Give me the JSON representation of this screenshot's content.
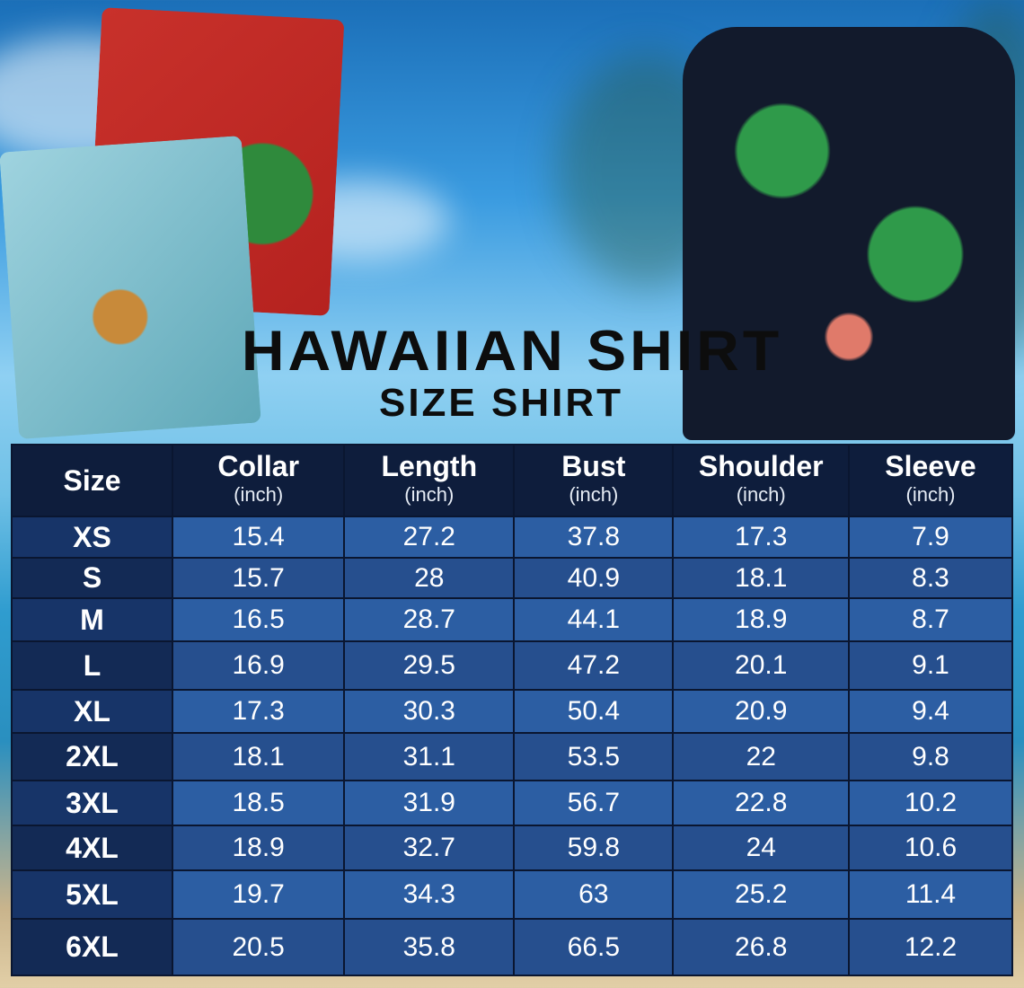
{
  "title": "HAWAIIAN SHIRT",
  "subtitle": "SIZE SHIRT",
  "colors": {
    "header_bg": "#0e1d3c",
    "cell_bg": "#2c5ea3",
    "size_col_bg": "#173468",
    "title": "#0d0d0d"
  },
  "table": {
    "headers": [
      {
        "label": "Size",
        "unit": ""
      },
      {
        "label": "Collar",
        "unit": "(inch)"
      },
      {
        "label": "Length",
        "unit": "(inch)"
      },
      {
        "label": "Bust",
        "unit": "(inch)"
      },
      {
        "label": "Shoulder",
        "unit": "(inch)"
      },
      {
        "label": "Sleeve",
        "unit": "(inch)"
      }
    ],
    "rows": [
      [
        "XS",
        "15.4",
        "27.2",
        "37.8",
        "17.3",
        "7.9"
      ],
      [
        "S",
        "15.7",
        "28",
        "40.9",
        "18.1",
        "8.3"
      ],
      [
        "M",
        "16.5",
        "28.7",
        "44.1",
        "18.9",
        "8.7"
      ],
      [
        "L",
        "16.9",
        "29.5",
        "47.2",
        "20.1",
        "9.1"
      ],
      [
        "XL",
        "17.3",
        "30.3",
        "50.4",
        "20.9",
        "9.4"
      ],
      [
        "2XL",
        "18.1",
        "31.1",
        "53.5",
        "22",
        "9.8"
      ],
      [
        "3XL",
        "18.5",
        "31.9",
        "56.7",
        "22.8",
        "10.2"
      ],
      [
        "4XL",
        "18.9",
        "32.7",
        "59.8",
        "24",
        "10.6"
      ],
      [
        "5XL",
        "19.7",
        "34.3",
        "63",
        "25.2",
        "11.4"
      ],
      [
        "6XL",
        "20.5",
        "35.8",
        "66.5",
        "26.8",
        "12.2"
      ]
    ]
  }
}
